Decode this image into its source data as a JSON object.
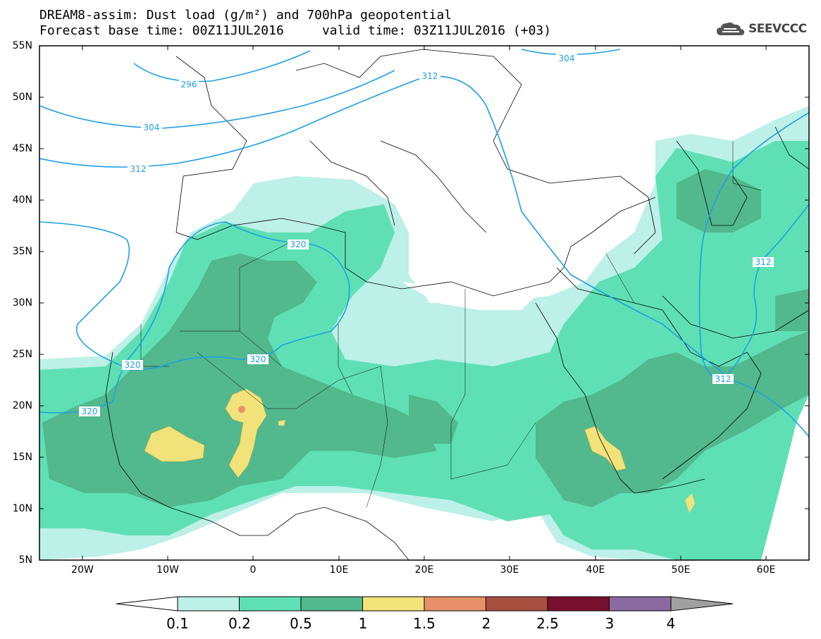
{
  "header": {
    "title_line1": "DREAM8-assim: Dust load (g/m²) and 700hPa geopotential",
    "title_line2": "Forecast base time: 00Z11JUL2016     valid time: 03Z11JUL2016 (+03)",
    "logo_text": "SEEVCCC",
    "logo_icon": "cloud-icon"
  },
  "axes": {
    "lat_labels": [
      "55N",
      "50N",
      "45N",
      "40N",
      "35N",
      "30N",
      "25N",
      "20N",
      "15N",
      "10N",
      "5N"
    ],
    "lon_labels": [
      "20W",
      "10W",
      "0",
      "10E",
      "20E",
      "30E",
      "40E",
      "50E",
      "60E"
    ]
  },
  "contour_labels": {
    "geopotential": [
      "296",
      "304",
      "312",
      "304",
      "312",
      "320",
      "320",
      "320",
      "320",
      "312",
      "312"
    ]
  },
  "colorbar": {
    "labels": [
      "0.1",
      "0.2",
      "0.5",
      "1",
      "1.5",
      "2",
      "2.5",
      "3",
      "4"
    ],
    "colors": [
      "#ffffff",
      "#bdf0e6",
      "#5fe0b4",
      "#52b88e",
      "#f2e27a",
      "#e8906a",
      "#a85040",
      "#7a1030",
      "#8a6aa0",
      "#a0a0a0"
    ]
  }
}
